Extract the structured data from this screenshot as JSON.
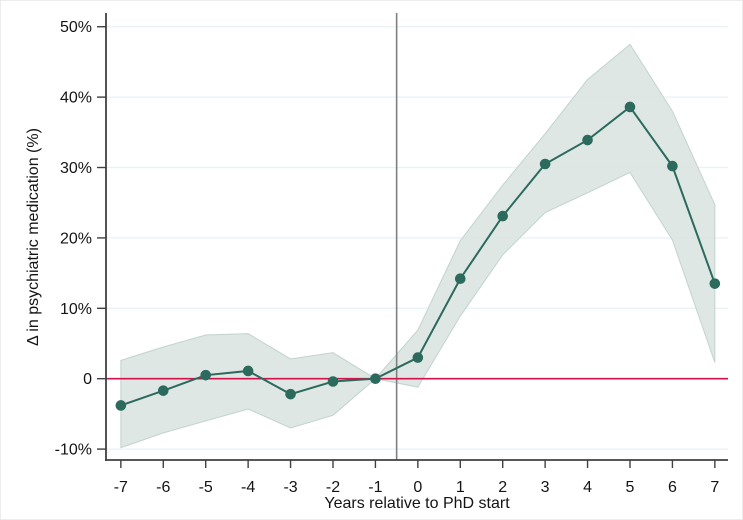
{
  "chart_data": {
    "type": "line",
    "title": "",
    "xlabel": "Years relative to PhD start",
    "ylabel": "Δ in psychiatric medication (%)",
    "x": [
      -7,
      -6,
      -5,
      -4,
      -3,
      -2,
      -1,
      0,
      1,
      2,
      3,
      4,
      5,
      6,
      7
    ],
    "series": [
      {
        "name": "point-estimate",
        "values": [
          -3.8,
          -1.7,
          0.5,
          1.1,
          -2.2,
          -0.4,
          0.0,
          3.0,
          14.2,
          23.1,
          30.5,
          33.9,
          38.6,
          30.2,
          13.5
        ]
      }
    ],
    "confidence_band": {
      "upper": [
        2.6,
        4.5,
        6.2,
        6.4,
        2.8,
        3.7,
        0.0,
        6.9,
        19.6,
        27.5,
        34.8,
        42.5,
        47.5,
        38.0,
        24.7
      ],
      "lower": [
        -9.8,
        -7.7,
        -6.0,
        -4.3,
        -7.0,
        -5.2,
        0.0,
        -1.2,
        8.9,
        17.6,
        23.6,
        26.4,
        29.3,
        19.7,
        2.3
      ]
    },
    "yticks": {
      "values": [
        50,
        40,
        30,
        20,
        10,
        0,
        -10
      ],
      "labels": [
        "50%",
        "40%",
        "30%",
        "20%",
        "10%",
        "0",
        "-10%"
      ]
    },
    "xticks": {
      "values": [
        -7,
        -6,
        -5,
        -4,
        -3,
        -2,
        -1,
        0,
        1,
        2,
        3,
        4,
        5,
        6,
        7
      ],
      "labels": [
        "-7",
        "-6",
        "-5",
        "-4",
        "-3",
        "-2",
        "-1",
        "0",
        "1",
        "2",
        "3",
        "4",
        "5",
        "6",
        "7"
      ]
    },
    "reference_lines": {
      "horizontal_y": 0,
      "vertical_x": -0.5
    },
    "xlim": [
      -7.35,
      7.31
    ],
    "ylim": [
      -11.55,
      51.95
    ],
    "grid": true,
    "legend_position": "none",
    "colors": {
      "series": "#2c6a5e",
      "band_fill": "#dbe5e1",
      "band_edge": "#c2d3cd",
      "gridline": "#e9f2f4",
      "zero_line": "#d0114a",
      "event_line": "#7f7f7f",
      "axis": "#404040",
      "text": "#141414"
    }
  }
}
